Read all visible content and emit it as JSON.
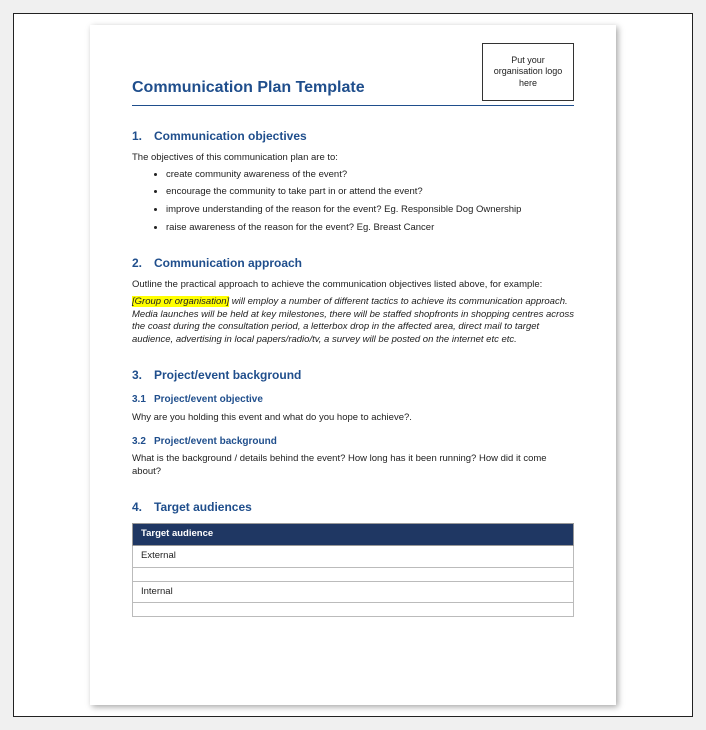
{
  "logo_placeholder": "Put your organisation logo here",
  "title": "Communication Plan Template",
  "sections": {
    "s1": {
      "num": "1.",
      "heading": "Communication objectives",
      "intro": "The objectives of this communication plan are to:",
      "bullets": [
        "create community awareness of the event?",
        "encourage the community to take part in or attend the event?",
        "improve understanding of the reason for the event? Eg. Responsible Dog Ownership",
        "raise awareness of the reason for the event? Eg. Breast Cancer"
      ]
    },
    "s2": {
      "num": "2.",
      "heading": "Communication approach",
      "intro": "Outline the practical approach to achieve the communication objectives listed above, for example:",
      "highlight": "[Group or organisation]",
      "italic_body": " will employ a number of different tactics to achieve its communication approach. Media launches will be held at key milestones, there will be staffed shopfronts in shopping centres across the coast during the consultation period, a letterbox drop in the affected area, direct mail to target audience, advertising in local papers/radio/tv, a survey will be posted on the internet etc etc."
    },
    "s3": {
      "num": "3.",
      "heading": "Project/event background",
      "sub1": {
        "num": "3.1",
        "heading": "Project/event objective",
        "body": "Why are you holding this event and what do you hope to achieve?."
      },
      "sub2": {
        "num": "3.2",
        "heading": "Project/event background",
        "body": "What is the background / details behind the event? How long has it been running? How did it come about?"
      }
    },
    "s4": {
      "num": "4.",
      "heading": "Target audiences",
      "table": {
        "header": "Target audience",
        "rows": [
          "External",
          "",
          "Internal",
          ""
        ]
      }
    }
  },
  "colors": {
    "heading": "#1f4e8c",
    "table_header_bg": "#1f3763",
    "highlight_bg": "#ffff00",
    "page_bg": "#ffffff",
    "outer_bg": "#f0f0f0"
  }
}
